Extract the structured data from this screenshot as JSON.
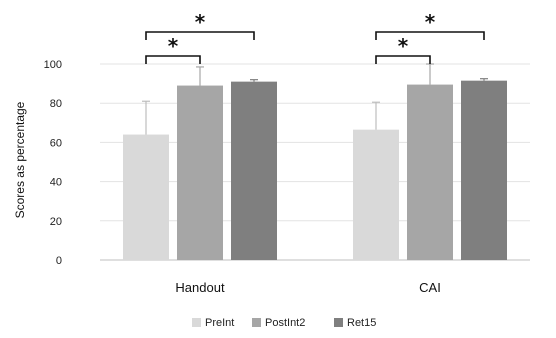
{
  "chart_data": {
    "type": "bar",
    "ylabel": "Scores as percentage",
    "xlabel": "",
    "title": "",
    "ylim": [
      0,
      100
    ],
    "yticks": [
      0,
      20,
      40,
      60,
      80,
      100
    ],
    "grid": true,
    "legend_position": "bottom",
    "categories": [
      "Handout",
      "CAI"
    ],
    "series": [
      {
        "name": "PreInt",
        "color": "#d9d9d9",
        "values": [
          64,
          66.5
        ],
        "error_upper": [
          81,
          80.5
        ]
      },
      {
        "name": "PostInt2",
        "color": "#a6a6a6",
        "values": [
          89,
          89.5
        ],
        "error_upper": [
          98.5,
          100
        ]
      },
      {
        "name": "Ret15",
        "color": "#7f7f7f",
        "values": [
          91,
          91.5
        ],
        "error_upper": [
          92,
          92.5
        ]
      }
    ],
    "significance": [
      {
        "category": "Handout",
        "from": "PreInt",
        "to": "PostInt2",
        "label": "*"
      },
      {
        "category": "Handout",
        "from": "PreInt",
        "to": "Ret15",
        "label": "*"
      },
      {
        "category": "CAI",
        "from": "PreInt",
        "to": "PostInt2",
        "label": "*"
      },
      {
        "category": "CAI",
        "from": "PreInt",
        "to": "Ret15",
        "label": "*"
      }
    ]
  }
}
